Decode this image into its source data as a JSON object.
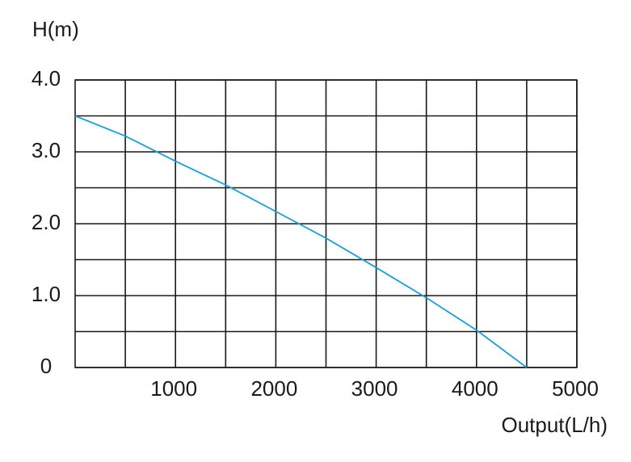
{
  "chart_data": {
    "type": "line",
    "y_label": "H(m)",
    "x_label": "Output(L/h)",
    "x": [
      0,
      500,
      1000,
      1500,
      2000,
      2500,
      3000,
      3500,
      4000,
      4500
    ],
    "series": [
      {
        "color": "#1b9fd4",
        "values": [
          3.5,
          3.22,
          2.87,
          2.54,
          2.17,
          1.8,
          1.39,
          0.97,
          0.52,
          0
        ]
      }
    ],
    "xlim": [
      0,
      5000
    ],
    "xticks": [
      1000,
      2000,
      3000,
      4000,
      5000
    ],
    "ylim": [
      0,
      4
    ],
    "yticks": [
      0,
      {
        "value": 1,
        "label": "1.0"
      },
      {
        "value": 2,
        "label": "2.0"
      },
      {
        "value": 3,
        "label": "3.0"
      },
      {
        "value": 4,
        "label": "4.0"
      }
    ],
    "grid": true
  }
}
